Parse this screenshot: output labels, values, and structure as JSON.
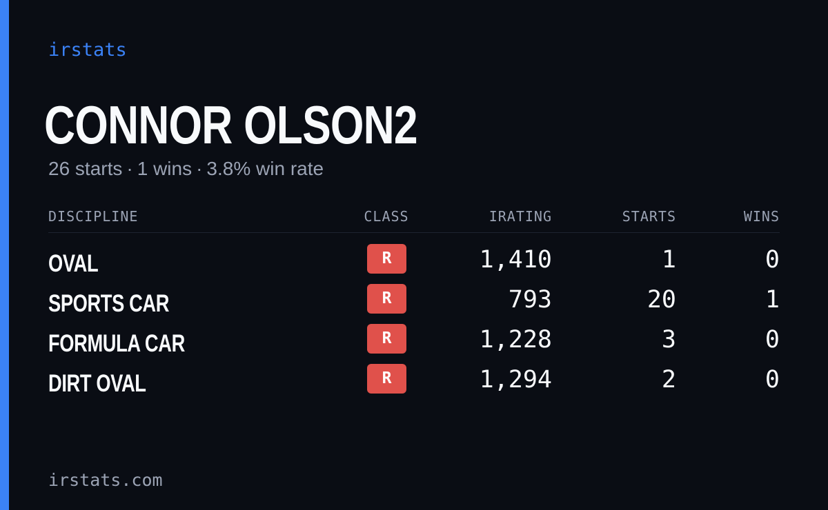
{
  "brand": "irstats",
  "player": {
    "name": "CONNOR OLSON2"
  },
  "summary": {
    "starts": "26 starts",
    "wins": "1 wins",
    "win_rate": "3.8% win rate",
    "separator": "·"
  },
  "table": {
    "headers": {
      "discipline": "DISCIPLINE",
      "class": "CLASS",
      "irating": "IRATING",
      "starts": "STARTS",
      "wins": "WINS"
    },
    "rows": [
      {
        "discipline": "OVAL",
        "class": "R",
        "irating": "1,410",
        "starts": "1",
        "wins": "0"
      },
      {
        "discipline": "SPORTS CAR",
        "class": "R",
        "irating": "793",
        "starts": "20",
        "wins": "1"
      },
      {
        "discipline": "FORMULA CAR",
        "class": "R",
        "irating": "1,228",
        "starts": "3",
        "wins": "0"
      },
      {
        "discipline": "DIRT OVAL",
        "class": "R",
        "irating": "1,294",
        "starts": "2",
        "wins": "0"
      }
    ]
  },
  "footer": {
    "url": "irstats.com"
  },
  "colors": {
    "background": "#0a0d14",
    "accent": "#3b82f6",
    "class_r_badge": "#e0514b",
    "muted_text": "#9ba3b4",
    "primary_text": "#f8fafc"
  }
}
